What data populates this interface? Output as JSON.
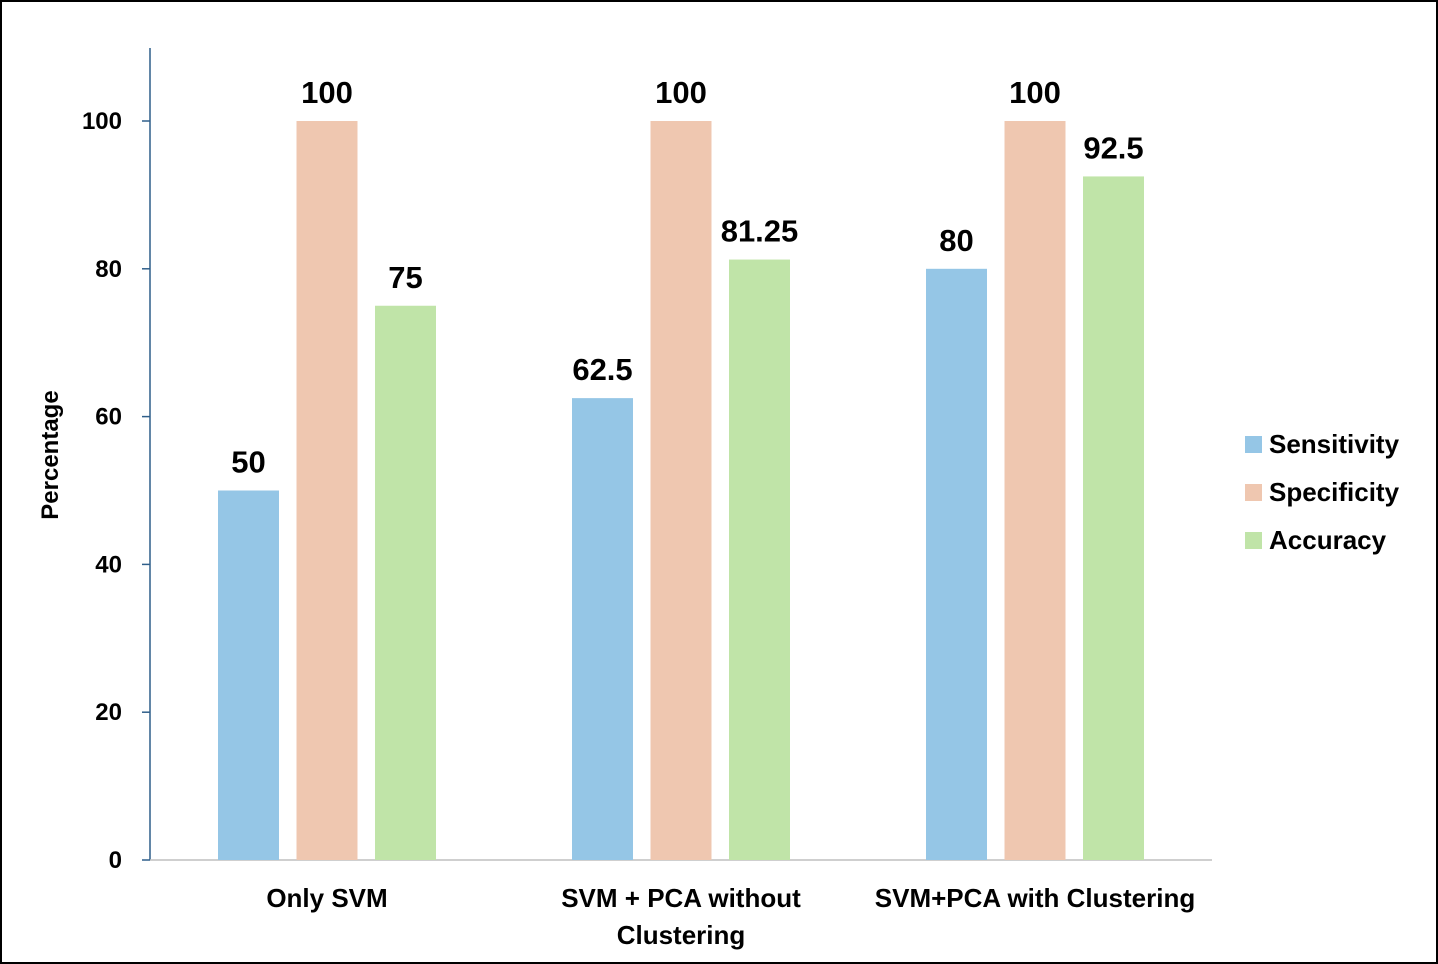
{
  "chart_data": {
    "type": "bar",
    "title": "",
    "xlabel": "",
    "ylabel": "Percentage",
    "ylim": [
      0,
      110
    ],
    "yticks": [
      0,
      20,
      40,
      60,
      80,
      100
    ],
    "grid": false,
    "legend_position": "right",
    "categories": [
      [
        "Only SVM"
      ],
      [
        "SVM + PCA without",
        "Clustering"
      ],
      [
        "SVM+PCA with Clustering"
      ]
    ],
    "series": [
      {
        "name": "Sensitivity",
        "color": "#95c6e6",
        "values": [
          50,
          62.5,
          80
        ],
        "labels": [
          "50",
          "62.5",
          "80"
        ]
      },
      {
        "name": "Specificity",
        "color": "#efc7b0",
        "values": [
          100,
          100,
          100
        ],
        "labels": [
          "100",
          "100",
          "100"
        ]
      },
      {
        "name": "Accuracy",
        "color": "#c0e4a8",
        "values": [
          75,
          81.25,
          92.5
        ],
        "labels": [
          "75",
          "81.25",
          "92.5"
        ]
      }
    ]
  }
}
